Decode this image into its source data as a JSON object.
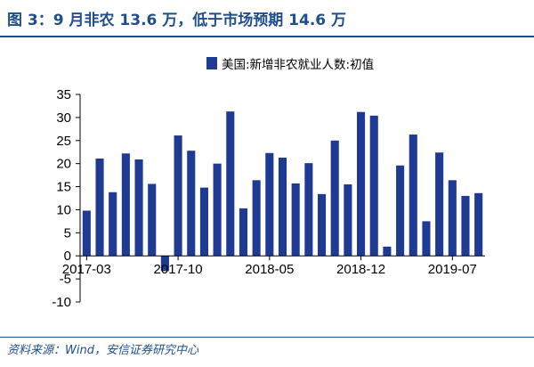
{
  "figure": {
    "title": "图 3：9 月非农 13.6 万，低于市场预期 14.6 万",
    "source": "资料来源：Wind，安信证券研究中心"
  },
  "colors": {
    "bar": "#1f3a93",
    "heading": "#1f4e8c",
    "axis": "#000000"
  },
  "chart_data": {
    "type": "bar",
    "title": "",
    "xlabel": "",
    "ylabel": "",
    "ylim": [
      -10,
      35
    ],
    "yticks": [
      -10,
      -5,
      0,
      5,
      10,
      15,
      20,
      25,
      30,
      35
    ],
    "xtick_labels": [
      "2017-03",
      "2017-10",
      "2018-05",
      "2018-12",
      "2019-07"
    ],
    "legend": {
      "position": "top",
      "label": "美国:新增非农就业人数:初值"
    },
    "grid": false,
    "categories": [
      "2017-03",
      "2017-04",
      "2017-05",
      "2017-06",
      "2017-07",
      "2017-08",
      "2017-09",
      "2017-10",
      "2017-11",
      "2017-12",
      "2018-01",
      "2018-02",
      "2018-03",
      "2018-04",
      "2018-05",
      "2018-06",
      "2018-07",
      "2018-08",
      "2018-09",
      "2018-10",
      "2018-11",
      "2018-12",
      "2019-01",
      "2019-02",
      "2019-03",
      "2019-04",
      "2019-05",
      "2019-06",
      "2019-07",
      "2019-08",
      "2019-09"
    ],
    "series": [
      {
        "name": "美国:新增非农就业人数:初值",
        "values": [
          9.8,
          21.1,
          13.8,
          22.2,
          20.9,
          15.6,
          -3.3,
          26.1,
          22.8,
          14.8,
          20.0,
          31.3,
          10.3,
          16.4,
          22.3,
          21.3,
          15.7,
          20.1,
          13.4,
          25.0,
          15.5,
          31.2,
          30.4,
          2.0,
          19.6,
          26.3,
          7.5,
          22.4,
          16.4,
          13.0,
          13.6
        ]
      }
    ]
  }
}
